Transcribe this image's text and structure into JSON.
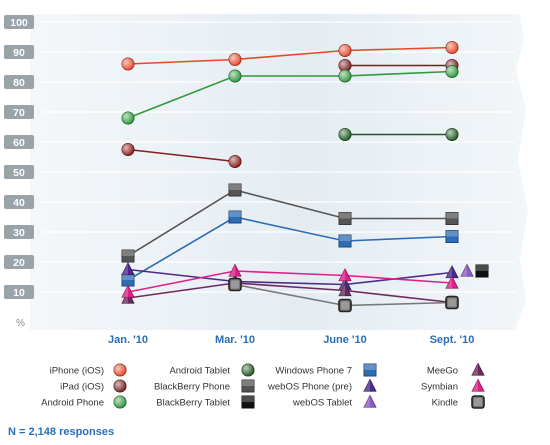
{
  "chart_data": {
    "type": "line",
    "categories": [
      "Jan. '10",
      "Mar. '10",
      "June '10",
      "Sept. '10"
    ],
    "ylim": [
      0,
      100
    ],
    "y_ticks": [
      "%",
      "10",
      "20",
      "30",
      "40",
      "50",
      "60",
      "70",
      "80",
      "90",
      "100"
    ],
    "grid": true,
    "legend_position": "bottom",
    "series": [
      {
        "name": "iPhone (iOS)",
        "color": "#e8482a",
        "marker": "circle",
        "values": [
          86,
          87.5,
          90.5,
          91.5
        ]
      },
      {
        "name": "iPad (iOS)",
        "color": "#7a1f1f",
        "marker": "circle",
        "values": [
          null,
          null,
          85.5,
          85.5
        ]
      },
      {
        "name": "Android Phone",
        "color": "#2e9a3c",
        "marker": "circle",
        "values": [
          68,
          82,
          82,
          83.5
        ]
      },
      {
        "name": "Android Tablet",
        "color": "#1f5a22",
        "marker": "circle",
        "values": [
          null,
          null,
          62.5,
          62.5
        ]
      },
      {
        "name": "BlackBerry Phone",
        "color": "#555555",
        "marker": "square",
        "values": [
          22,
          44,
          34.5,
          34.5
        ]
      },
      {
        "name": "BlackBerry Tablet",
        "color": "#111111",
        "marker": "square",
        "values": [
          null,
          null,
          null,
          null
        ]
      },
      {
        "name": "Windows Phone 7",
        "color": "#2d6db5",
        "marker": "square",
        "values": [
          14,
          35,
          27,
          28.5
        ]
      },
      {
        "name": "webOS Phone (pre)",
        "color": "#4b2a8a",
        "marker": "triangle",
        "values": [
          17.5,
          13.5,
          12.5,
          16.5
        ]
      },
      {
        "name": "webOS Tablet",
        "color": "#8a5cc7",
        "marker": "triangle",
        "values": [
          null,
          null,
          null,
          null
        ]
      },
      {
        "name": "MeeGo",
        "color": "#6b2a5e",
        "marker": "triangle",
        "values": [
          8,
          13,
          10.5,
          6.5
        ]
      },
      {
        "name": "Symbian",
        "color": "#e0208a",
        "marker": "triangle",
        "values": [
          10,
          17,
          15.5,
          13
        ]
      },
      {
        "name": "Kindle",
        "color": "#777777",
        "marker": "roundsquare",
        "values": [
          null,
          12.5,
          5.5,
          6.5
        ]
      },
      {
        "name": "Maroon unlabeled line",
        "color": "#8a1c1c",
        "marker": "circle",
        "values": [
          57.5,
          53.5,
          null,
          null
        ]
      }
    ],
    "standalone_markers": [
      {
        "series": "webOS Tablet",
        "category": "Sept. '10",
        "value": 17,
        "offset_slot": 1
      },
      {
        "series": "BlackBerry Tablet",
        "category": "Sept. '10",
        "value": 17,
        "offset_slot": 2
      }
    ]
  },
  "legend_columns": [
    [
      "iPhone (iOS)",
      "iPad (iOS)",
      "Android Phone"
    ],
    [
      "Android Tablet",
      "BlackBerry Phone",
      "BlackBerry Tablet"
    ],
    [
      "Windows Phone 7",
      "webOS Phone (pre)",
      "webOS Tablet"
    ],
    [
      "MeeGo",
      "Symbian",
      "Kindle"
    ]
  ],
  "note": "N = 2,148 responses"
}
